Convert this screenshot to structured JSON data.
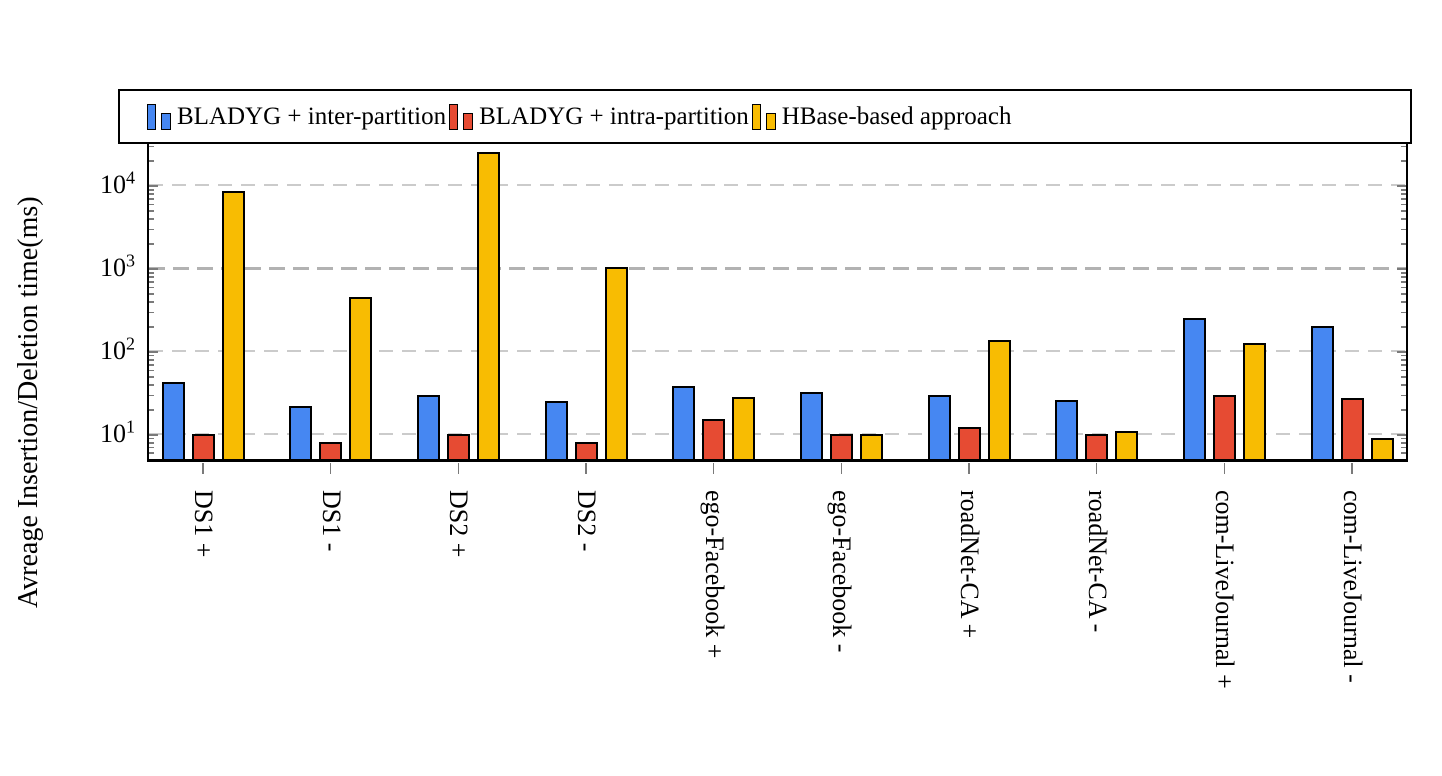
{
  "chart_data": {
    "type": "bar",
    "title": "",
    "xlabel": "",
    "ylabel": "Avreage Insertion/Deletion time(ms)",
    "yscale": "log",
    "ylim": [
      5,
      31623
    ],
    "ytick_labels": [
      "10^1",
      "10^2",
      "10^3",
      "10^4"
    ],
    "grid": "horizontal dashed lines at each decade",
    "legend_position": "top, single row spanning plot width",
    "categories": [
      "DS1 +",
      "DS1 -",
      "DS2 +",
      "DS2 -",
      "ego-Facebook +",
      "ego-Facebook -",
      "roadNet-CA +",
      "roadNet-CA -",
      "com-LiveJournal +",
      "com-LiveJournal -"
    ],
    "series": [
      {
        "name": "BLADYG + inter-partition",
        "color": "#4687F2",
        "values": [
          42,
          22,
          30,
          25,
          38,
          32,
          30,
          26,
          250,
          200
        ]
      },
      {
        "name": "BLADYG + intra-partition",
        "color": "#E64B33",
        "values": [
          10,
          8,
          10,
          8,
          15,
          10,
          12,
          10,
          30,
          27
        ]
      },
      {
        "name": "HBase-based approach",
        "color": "#F8BC02",
        "values": [
          8500,
          450,
          25000,
          1050,
          28,
          10,
          135,
          11,
          125,
          9
        ]
      }
    ]
  },
  "colors": {
    "axis_frame": "#000000",
    "tick": "#7a7a7a",
    "grid_normal": "#cbcbcb",
    "grid_strong": "#b2b2b2",
    "background": "#ffffff"
  }
}
